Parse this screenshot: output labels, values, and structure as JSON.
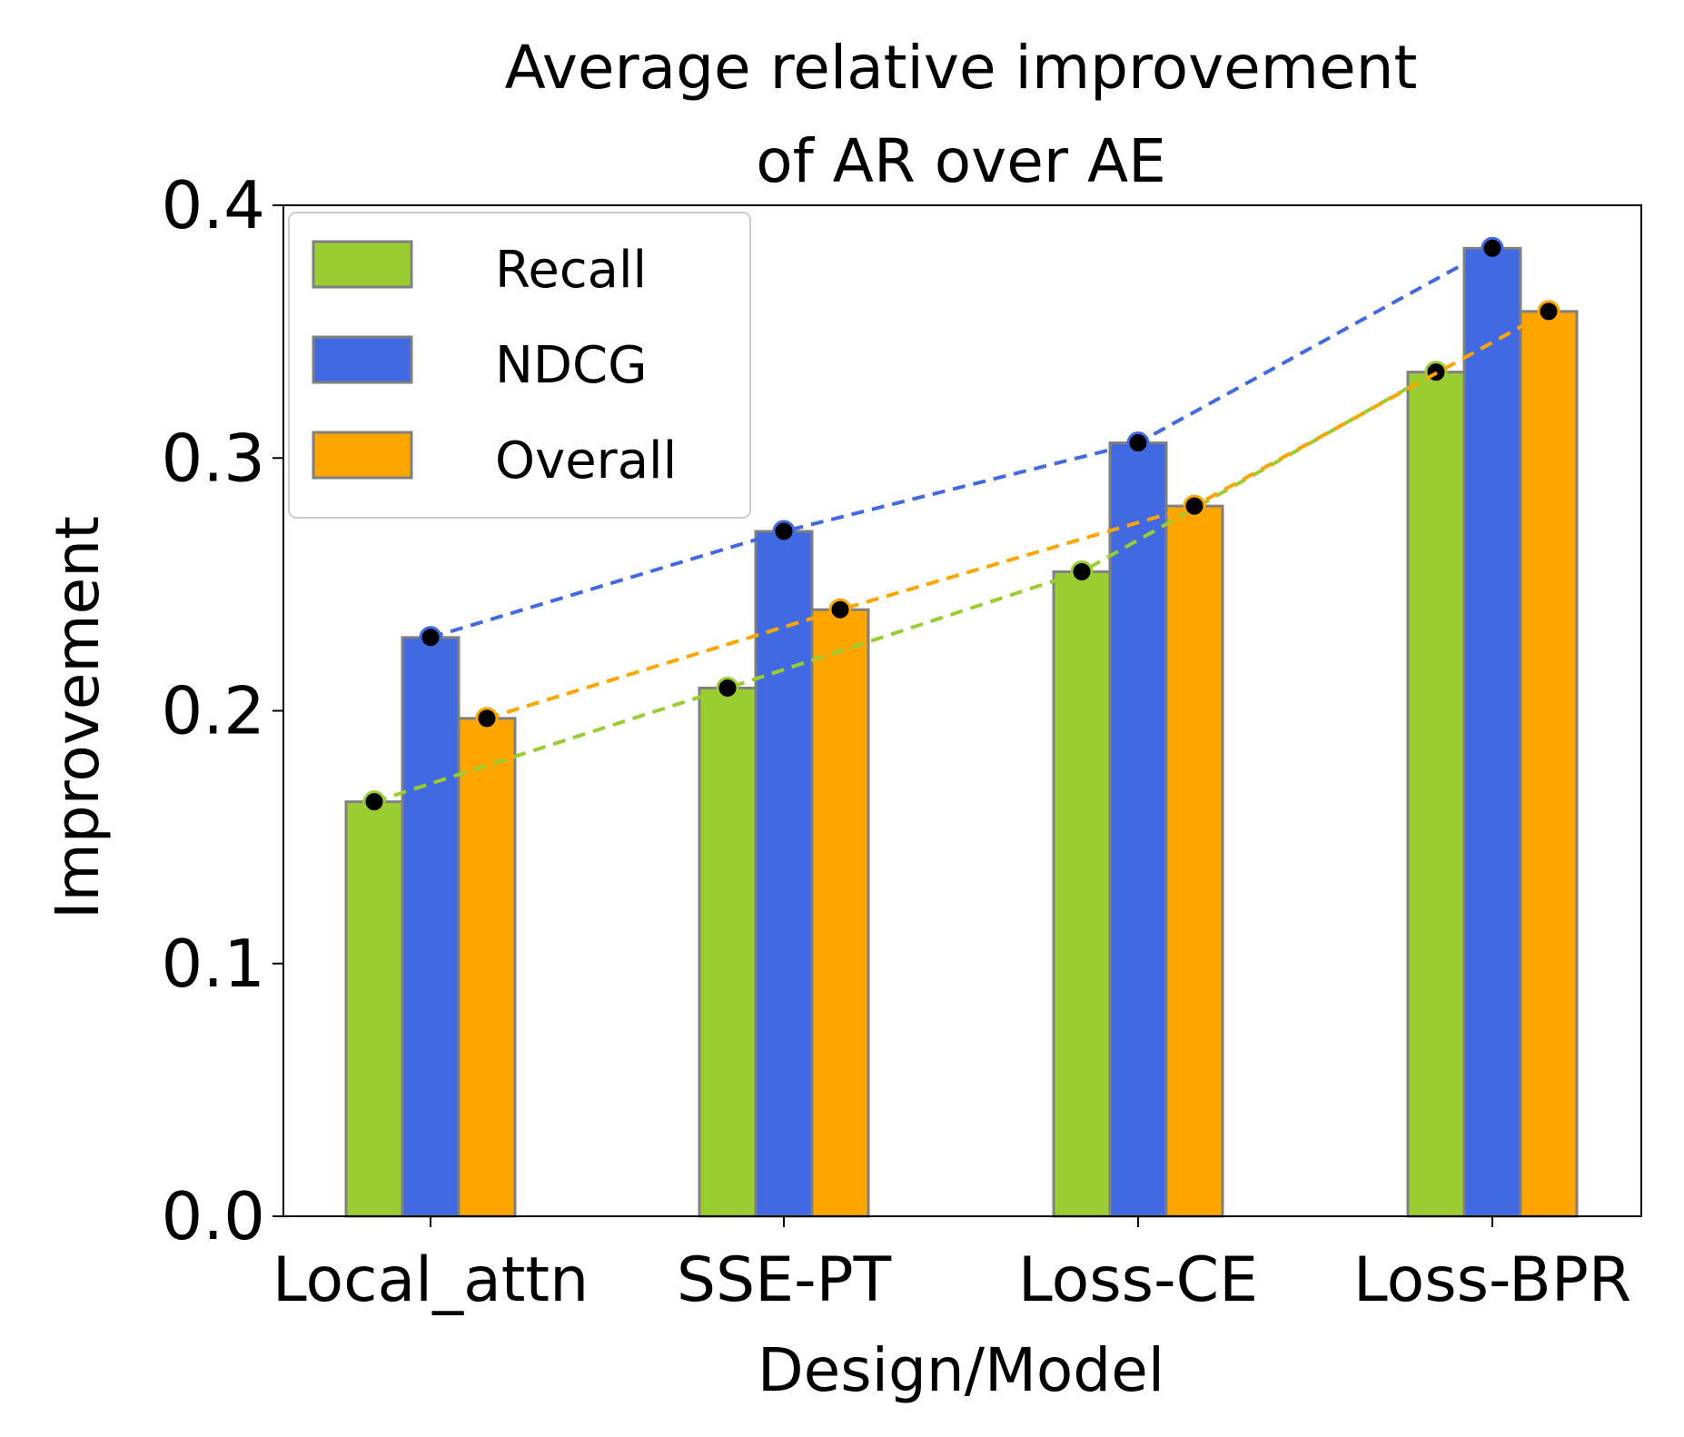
{
  "chart_data": {
    "type": "bar",
    "title": [
      "Average relative improvement",
      "of AR over AE"
    ],
    "xlabel": "Design/Model",
    "ylabel": "Improvement",
    "categories": [
      "Local_attn",
      "SSE-PT",
      "Loss-CE",
      "Loss-BPR"
    ],
    "ylim": [
      0,
      0.4
    ],
    "yticks": [
      "0.0",
      "0.1",
      "0.2",
      "0.3",
      "0.4"
    ],
    "grid": false,
    "legend_position": "top-left",
    "series": [
      {
        "name": "Recall",
        "color": "#9acd32",
        "values": [
          0.164,
          0.209,
          0.255,
          0.334
        ]
      },
      {
        "name": "NDCG",
        "color": "#4169e1",
        "values": [
          0.229,
          0.271,
          0.306,
          0.383
        ]
      },
      {
        "name": "Overall",
        "color": "#ffa500",
        "values": [
          0.197,
          0.24,
          0.281,
          0.358
        ]
      }
    ],
    "trend_lines": "dashed lines connecting bar tops per series, with black markers"
  }
}
